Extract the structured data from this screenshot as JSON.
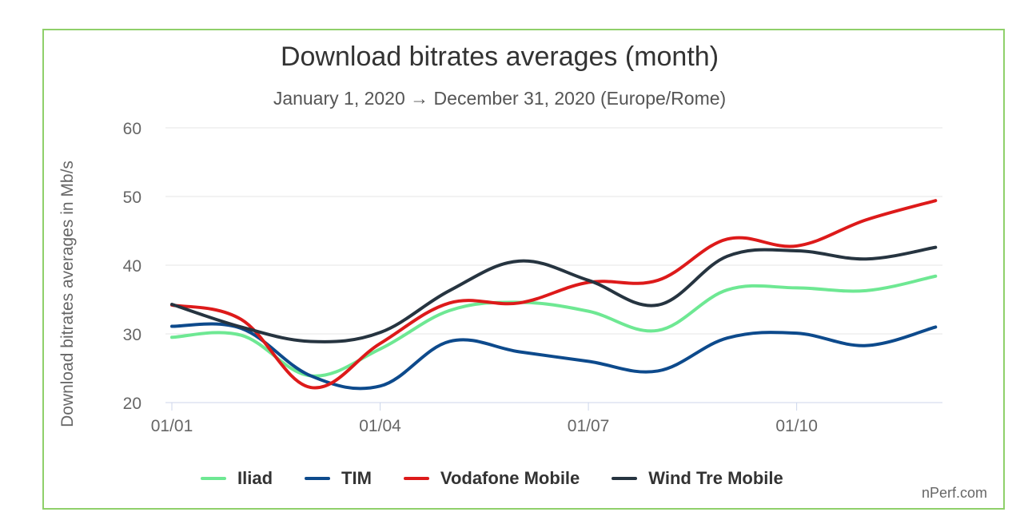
{
  "chart_data": {
    "type": "line",
    "title": "Download bitrates averages (month)",
    "subtitle": "January 1, 2020 → December 31, 2020 (Europe/Rome)",
    "ylabel": "Download bitrates averages in Mb/s",
    "ylim": [
      20,
      60
    ],
    "yticks": [
      20,
      30,
      40,
      50,
      60
    ],
    "xtick_labels": [
      "01/01",
      "01/04",
      "01/07",
      "01/10"
    ],
    "xtick_month_index": [
      0,
      3,
      6,
      9
    ],
    "x": [
      0,
      1,
      2,
      3,
      4,
      5,
      6,
      7,
      8,
      9,
      10,
      11
    ],
    "grid": true,
    "legend_position": "bottom",
    "series": [
      {
        "name": "Iliad",
        "color": "#6ee893",
        "values": [
          29.5,
          29.8,
          23.9,
          27.8,
          33.4,
          34.6,
          33.3,
          30.5,
          36.4,
          36.7,
          36.3,
          38.4
        ]
      },
      {
        "name": "TIM",
        "color": "#0d4a8c",
        "values": [
          31.1,
          30.8,
          23.9,
          22.4,
          28.9,
          27.4,
          26.0,
          24.6,
          29.4,
          30.1,
          28.3,
          31.0
        ]
      },
      {
        "name": "Vodafone Mobile",
        "color": "#dd1a1a",
        "values": [
          34.2,
          32.1,
          22.2,
          28.6,
          34.5,
          34.5,
          37.5,
          37.8,
          43.8,
          42.8,
          46.6,
          49.4
        ]
      },
      {
        "name": "Wind Tre Mobile",
        "color": "#263440",
        "values": [
          34.3,
          31.0,
          28.9,
          30.2,
          36.3,
          40.6,
          37.8,
          34.2,
          41.3,
          42.1,
          40.9,
          42.6
        ]
      }
    ]
  },
  "credit": "nPerf.com"
}
